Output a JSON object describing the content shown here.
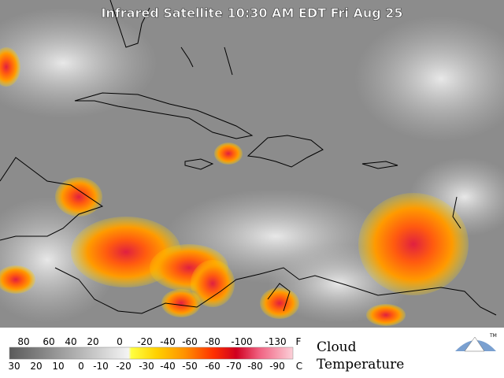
{
  "header": {
    "title": "Infrared Satellite 10:30 AM EDT Fri Aug 25"
  },
  "legend": {
    "fahrenheit": [
      "80",
      "60",
      "40",
      "20",
      "0",
      "-20",
      "-40",
      "-60",
      "-80",
      "-100",
      "-130"
    ],
    "fahrenheit_unit": "F",
    "celsius": [
      "30",
      "20",
      "10",
      "0",
      "-10",
      "-20",
      "-30",
      "-40",
      "-50",
      "-60",
      "-70",
      "-80",
      "-90"
    ],
    "celsius_unit": "C",
    "caption_line1": "Cloud",
    "caption_line2": "Temperature"
  },
  "logo": {
    "mark": "TM"
  }
}
